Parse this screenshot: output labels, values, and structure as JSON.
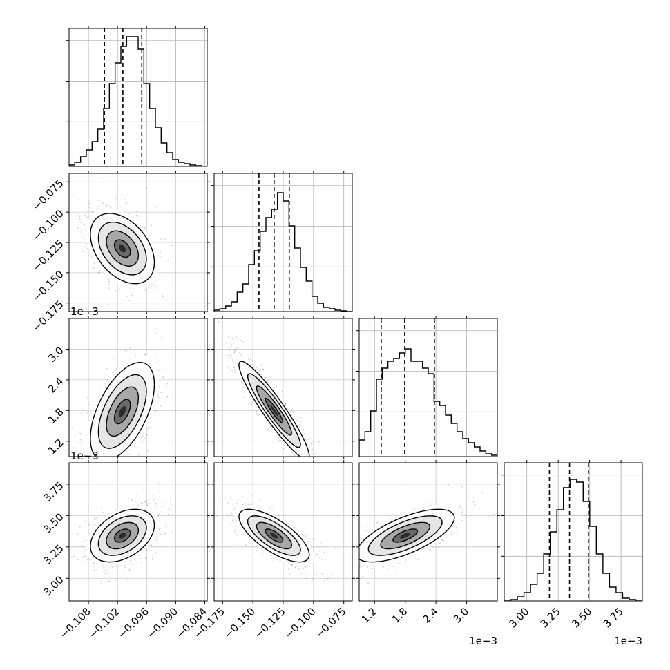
{
  "chart_data": {
    "type": "corner",
    "n_params": 4,
    "params": [
      {
        "scale": 1,
        "range": [
          -0.112,
          -0.0835
        ],
        "ticks": [
          -0.108,
          -0.102,
          -0.096,
          -0.09,
          -0.084
        ],
        "tick_labels": [
          "−0.108",
          "−0.102",
          "−0.096",
          "−0.090",
          "−0.084"
        ],
        "offset_label": "",
        "quantiles": [
          -0.1047,
          -0.1009,
          -0.097
        ],
        "hist": [
          0.01,
          0.03,
          0.07,
          0.12,
          0.18,
          0.27,
          0.42,
          0.6,
          0.75,
          0.87,
          0.94,
          0.94,
          0.85,
          0.6,
          0.42,
          0.28,
          0.17,
          0.1,
          0.05,
          0.03,
          0.02,
          0.01,
          0.005,
          0.0
        ]
      },
      {
        "scale": 1,
        "range": [
          -0.182,
          -0.068
        ],
        "ticks": [
          -0.175,
          -0.15,
          -0.125,
          -0.1,
          -0.075
        ],
        "tick_labels": [
          "−0.175",
          "−0.150",
          "−0.125",
          "−0.100",
          "−0.075"
        ],
        "offset_label": "",
        "quantiles": [
          -0.145,
          -0.1325,
          -0.12
        ],
        "hist": [
          0.01,
          0.02,
          0.04,
          0.07,
          0.14,
          0.2,
          0.34,
          0.44,
          0.58,
          0.68,
          0.74,
          0.86,
          0.8,
          0.62,
          0.46,
          0.32,
          0.22,
          0.11,
          0.06,
          0.03,
          0.02,
          0.01,
          0.005,
          0.0
        ]
      },
      {
        "scale": 1000,
        "range": [
          0.9,
          3.6
        ],
        "ticks": [
          1.2,
          1.8,
          2.4,
          3.0
        ],
        "tick_labels": [
          "1.2",
          "1.8",
          "2.4",
          "3.0"
        ],
        "offset_label": "1e−3",
        "quantiles": [
          1.33,
          1.79,
          2.37
        ],
        "hist": [
          0.12,
          0.18,
          0.33,
          0.56,
          0.64,
          0.69,
          0.71,
          0.75,
          0.78,
          0.69,
          0.69,
          0.64,
          0.6,
          0.4,
          0.37,
          0.3,
          0.24,
          0.18,
          0.13,
          0.1,
          0.07,
          0.04,
          0.02,
          0.01
        ]
      },
      {
        "scale": 1000,
        "range": [
          2.82,
          3.92
        ],
        "ticks": [
          3.0,
          3.25,
          3.5,
          3.75
        ],
        "tick_labels": [
          "3.00",
          "3.25",
          "3.50",
          "3.75"
        ],
        "offset_label": "1e−3",
        "quantiles": [
          3.18,
          3.34,
          3.49
        ],
        "hist": [
          0.0,
          0.01,
          0.03,
          0.06,
          0.12,
          0.2,
          0.34,
          0.5,
          0.66,
          0.82,
          0.88,
          0.86,
          0.72,
          0.54,
          0.34,
          0.2,
          0.1,
          0.06,
          0.02,
          0.01,
          0.0
        ]
      }
    ],
    "pairs": [
      {
        "row": 1,
        "col": 0,
        "mean": [
          -0.101,
          -0.13
        ],
        "sd": [
          0.0033,
          0.0145
        ],
        "rho": -0.4
      },
      {
        "row": 2,
        "col": 0,
        "mean": [
          -0.101,
          1.78
        ],
        "sd": [
          0.0033,
          0.48
        ],
        "rho": 0.55
      },
      {
        "row": 2,
        "col": 1,
        "mean": [
          -0.1325,
          1.8
        ],
        "sd": [
          0.0145,
          0.48
        ],
        "rho": -0.93
      },
      {
        "row": 3,
        "col": 0,
        "mean": [
          -0.101,
          3.34
        ],
        "sd": [
          0.0033,
          0.105
        ],
        "rho": 0.4
      },
      {
        "row": 3,
        "col": 1,
        "mean": [
          -0.1325,
          3.34
        ],
        "sd": [
          0.0145,
          0.105
        ],
        "rho": -0.72
      },
      {
        "row": 3,
        "col": 2,
        "mean": [
          1.8,
          3.34
        ],
        "sd": [
          0.48,
          0.105
        ],
        "rho": 0.68
      }
    ],
    "contour_levels_sigma": [
      0.5,
      1.0,
      1.5,
      2.0
    ],
    "grid": true,
    "density_color": "#000000",
    "sample_color": "#808080"
  }
}
